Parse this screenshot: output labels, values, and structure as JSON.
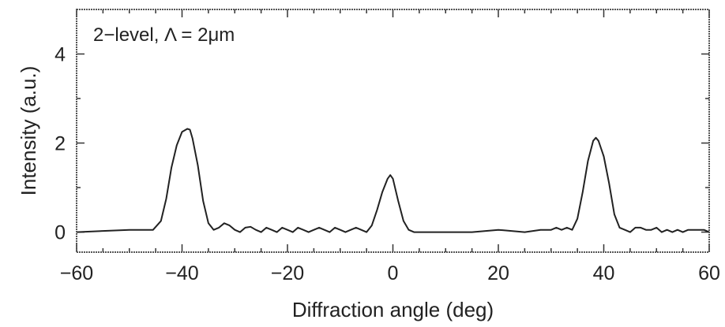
{
  "chart_data": {
    "type": "line",
    "annotation": "2−level, Λ = 2μm",
    "xlabel": "Diffraction angle (deg)",
    "ylabel": "Intensity (a.u.)",
    "xlim": [
      -60,
      60
    ],
    "ylim": [
      -0.45,
      5.0
    ],
    "x_ticks": [
      -60,
      -40,
      -20,
      0,
      20,
      40,
      60
    ],
    "x_tick_labels": [
      "−60",
      "−40",
      "−20",
      "0",
      "20",
      "40",
      "60"
    ],
    "y_ticks": [
      0,
      2,
      4
    ],
    "y_tick_labels": [
      "0",
      "2",
      "4"
    ],
    "grid": false,
    "legend": "none",
    "series": [
      {
        "color": "#222222",
        "x": [
          -60,
          -50,
          -45.5,
          -44,
          -43,
          -42,
          -41,
          -40,
          -39,
          -38.5,
          -38,
          -37,
          -36,
          -35,
          -34,
          -33,
          -32,
          -31,
          -30,
          -29,
          -28,
          -27,
          -26,
          -25,
          -24,
          -23,
          -22,
          -21,
          -20,
          -19,
          -18,
          -17,
          -16,
          -15,
          -14,
          -13,
          -12,
          -11,
          -10,
          -9,
          -8,
          -7,
          -6,
          -5,
          -4,
          -3,
          -2,
          -1,
          -0.5,
          0,
          1,
          2,
          3,
          4,
          5,
          6,
          10,
          15,
          20,
          25,
          28,
          30,
          31,
          32,
          33,
          34,
          35,
          36,
          37,
          38,
          38.5,
          39,
          40,
          41,
          42,
          43,
          44,
          45,
          46,
          47,
          48,
          49,
          50,
          51,
          52,
          53,
          54,
          55,
          56,
          57,
          58,
          59,
          60
        ],
        "y": [
          0.0,
          0.05,
          0.05,
          0.25,
          0.75,
          1.45,
          1.95,
          2.25,
          2.32,
          2.3,
          2.1,
          1.5,
          0.7,
          0.2,
          0.05,
          0.1,
          0.2,
          0.15,
          0.05,
          0.0,
          0.1,
          0.12,
          0.05,
          0.0,
          0.1,
          0.05,
          0.0,
          0.1,
          0.05,
          0.0,
          0.1,
          0.05,
          0.0,
          0.05,
          0.1,
          0.05,
          0.0,
          0.1,
          0.05,
          0.0,
          0.05,
          0.1,
          0.05,
          0.0,
          0.15,
          0.5,
          0.9,
          1.2,
          1.28,
          1.2,
          0.7,
          0.25,
          0.05,
          0.0,
          0.0,
          0.0,
          0.0,
          0.0,
          0.05,
          0.0,
          0.05,
          0.05,
          0.1,
          0.05,
          0.1,
          0.05,
          0.3,
          0.9,
          1.6,
          2.05,
          2.12,
          2.05,
          1.7,
          1.1,
          0.4,
          0.1,
          0.05,
          0.0,
          0.1,
          0.1,
          0.05,
          0.05,
          0.1,
          0.0,
          0.05,
          0.0,
          0.05,
          0.0,
          0.05,
          0.05,
          0.05,
          0.05,
          0.0
        ]
      }
    ]
  }
}
